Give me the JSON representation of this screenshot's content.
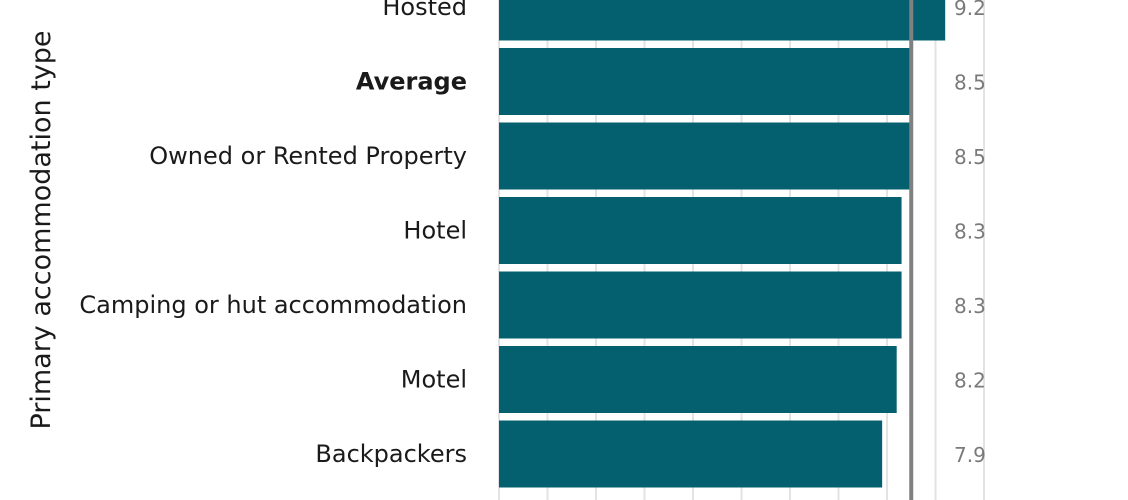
{
  "chart_data": {
    "type": "bar",
    "orientation": "horizontal",
    "ylabel": "Primary accommodation type",
    "categories": [
      "Hosted",
      "Average",
      "Owned or Rented Property",
      "Hotel",
      "Camping or hut accommodation",
      "Motel",
      "Backpackers"
    ],
    "values": [
      9.2,
      8.5,
      8.5,
      8.3,
      8.3,
      8.2,
      7.9
    ],
    "value_labels": [
      "9.2",
      "8.5",
      "8.5",
      "8.3",
      "8.3",
      "8.2",
      "7.9"
    ],
    "bold_categories": [
      "Average"
    ],
    "reference_line": 8.5,
    "xlim": [
      0,
      10
    ],
    "grid": "vertical",
    "colors": {
      "bar": "#04606f",
      "reference_line": "#808080",
      "grid": "#e3e3e3",
      "value_text": "#7a7a7a"
    }
  }
}
